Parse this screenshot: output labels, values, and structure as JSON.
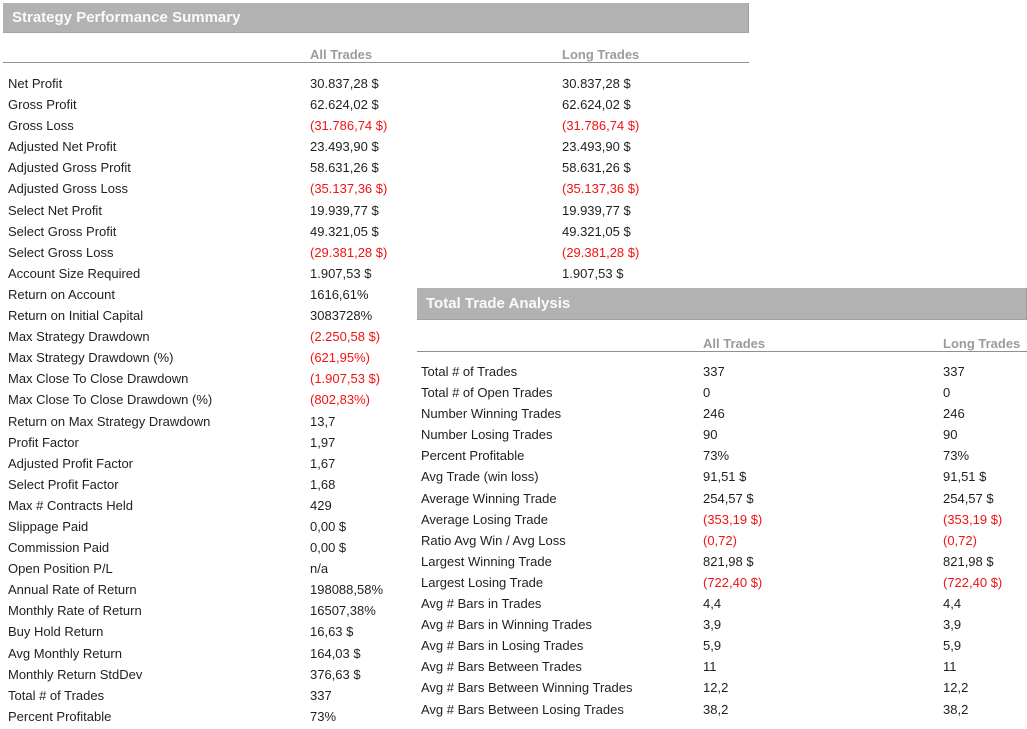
{
  "colors": {
    "header_bar_bg": "#b2b2b2",
    "header_bar_text": "#fafafa",
    "column_header_text": "#9b9b9b",
    "body_text": "#1f1f1f",
    "negative_value_text": "#f21313",
    "rule_line": "#8f8f8f"
  },
  "left": {
    "title": "Strategy Performance Summary",
    "columns": [
      "All Trades",
      "Long Trades"
    ],
    "rows": [
      {
        "label": "Net Profit",
        "all": "30.837,28 $",
        "long": "30.837,28 $"
      },
      {
        "label": "Gross Profit",
        "all": "62.624,02 $",
        "long": "62.624,02 $"
      },
      {
        "label": "Gross Loss",
        "all": "(31.786,74 $)",
        "long": "(31.786,74 $)"
      },
      {
        "label": "Adjusted Net Profit",
        "all": "23.493,90 $",
        "long": "23.493,90 $"
      },
      {
        "label": "Adjusted Gross Profit",
        "all": "58.631,26 $",
        "long": "58.631,26 $"
      },
      {
        "label": "Adjusted Gross Loss",
        "all": "(35.137,36 $)",
        "long": "(35.137,36 $)"
      },
      {
        "label": "Select Net Profit",
        "all": "19.939,77 $",
        "long": "19.939,77 $"
      },
      {
        "label": "Select Gross Profit",
        "all": "49.321,05 $",
        "long": "49.321,05 $"
      },
      {
        "label": "Select Gross Loss",
        "all": "(29.381,28 $)",
        "long": "(29.381,28 $)"
      },
      {
        "label": "Account Size Required",
        "all": "1.907,53 $",
        "long": "1.907,53 $"
      },
      {
        "label": "Return on Account",
        "all": "1616,61%",
        "long": ""
      },
      {
        "label": "Return on Initial Capital",
        "all": "3083728%",
        "long": ""
      },
      {
        "label": "Max Strategy Drawdown",
        "all": "(2.250,58 $)",
        "long": ""
      },
      {
        "label": "Max Strategy Drawdown (%)",
        "all": "(621,95%)",
        "long": ""
      },
      {
        "label": "Max Close To Close Drawdown",
        "all": "(1.907,53 $)",
        "long": ""
      },
      {
        "label": "Max Close To Close Drawdown (%)",
        "all": "(802,83%)",
        "long": ""
      },
      {
        "label": "Return on Max Strategy Drawdown",
        "all": "13,7",
        "long": ""
      },
      {
        "label": "Profit Factor",
        "all": "1,97",
        "long": ""
      },
      {
        "label": "Adjusted Profit Factor",
        "all": "1,67",
        "long": ""
      },
      {
        "label": "Select Profit Factor",
        "all": "1,68",
        "long": ""
      },
      {
        "label": "Max # Contracts Held",
        "all": "429",
        "long": ""
      },
      {
        "label": "Slippage Paid",
        "all": "0,00 $",
        "long": ""
      },
      {
        "label": "Commission Paid",
        "all": "0,00 $",
        "long": ""
      },
      {
        "label": "Open Position P/L",
        "all": "n/a",
        "long": ""
      },
      {
        "label": "Annual Rate of Return",
        "all": "198088,58%",
        "long": ""
      },
      {
        "label": "Monthly Rate of Return",
        "all": "16507,38%",
        "long": ""
      },
      {
        "label": "Buy  Hold Return",
        "all": "16,63 $",
        "long": ""
      },
      {
        "label": "Avg Monthly Return",
        "all": "164,03 $",
        "long": ""
      },
      {
        "label": "Monthly Return StdDev",
        "all": "376,63 $",
        "long": ""
      },
      {
        "label": "Total # of Trades",
        "all": "337",
        "long": ""
      },
      {
        "label": "Percent Profitable",
        "all": "73%",
        "long": ""
      }
    ]
  },
  "right": {
    "title": "Total Trade Analysis",
    "columns": [
      "All Trades",
      "Long Trades"
    ],
    "rows": [
      {
        "label": "Total # of Trades",
        "all": "337",
        "long": "337"
      },
      {
        "label": "Total # of Open Trades",
        "all": "0",
        "long": "0"
      },
      {
        "label": "Number Winning Trades",
        "all": "246",
        "long": "246"
      },
      {
        "label": "Number Losing Trades",
        "all": "90",
        "long": "90"
      },
      {
        "label": "Percent Profitable",
        "all": "73%",
        "long": "73%"
      },
      {
        "label": "Avg Trade (win  loss)",
        "all": "91,51 $",
        "long": "91,51 $"
      },
      {
        "label": "Average Winning Trade",
        "all": "254,57 $",
        "long": "254,57 $"
      },
      {
        "label": "Average Losing Trade",
        "all": "(353,19 $)",
        "long": "(353,19 $)"
      },
      {
        "label": "Ratio Avg Win / Avg Loss",
        "all": "(0,72)",
        "long": "(0,72)"
      },
      {
        "label": "Largest Winning Trade",
        "all": "821,98 $",
        "long": "821,98 $"
      },
      {
        "label": "Largest Losing Trade",
        "all": "(722,40 $)",
        "long": "(722,40 $)"
      },
      {
        "label": "Avg # Bars in Trades",
        "all": "4,4",
        "long": "4,4"
      },
      {
        "label": "Avg # Bars in Winning Trades",
        "all": "3,9",
        "long": "3,9"
      },
      {
        "label": "Avg # Bars in Losing Trades",
        "all": "5,9",
        "long": "5,9"
      },
      {
        "label": "Avg # Bars Between Trades",
        "all": "11",
        "long": "11"
      },
      {
        "label": "Avg # Bars Between Winning Trades",
        "all": "12,2",
        "long": "12,2"
      },
      {
        "label": "Avg # Bars Between Losing Trades",
        "all": "38,2",
        "long": "38,2"
      }
    ]
  }
}
